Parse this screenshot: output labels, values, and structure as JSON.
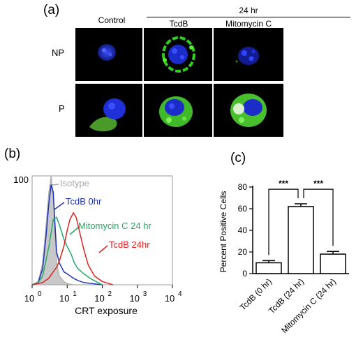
{
  "panel_a": {
    "label": "(a)",
    "time_header": "24 hr",
    "columns": [
      "Control",
      "TcdB",
      "Mitomycin C"
    ],
    "rows": [
      "NP",
      "P"
    ]
  },
  "panel_b": {
    "label": "(b)",
    "ytick": "100",
    "xlabel": "CRT exposure",
    "xticks": [
      "10",
      "10",
      "10",
      "10",
      "10"
    ],
    "xtick_exponents": [
      "0",
      "1",
      "2",
      "3",
      "4"
    ],
    "legend": [
      {
        "name": "Isotype",
        "color": "#aaaaaa"
      },
      {
        "name": "TcdB 0hr",
        "color": "#2233bb"
      },
      {
        "name": "Mitomycin C 24 hr",
        "color": "#22aa66"
      },
      {
        "name": "TcdB 24hr",
        "color": "#dd2222"
      }
    ]
  },
  "panel_c": {
    "label": "(c)",
    "significance": [
      "***",
      "***"
    ]
  },
  "chart_data": [
    {
      "type": "line",
      "title": "",
      "xlabel": "CRT exposure",
      "ylabel": "",
      "xscale": "log",
      "xlim": [
        1,
        10000
      ],
      "ylim": [
        0,
        100
      ],
      "series": [
        {
          "name": "Isotype",
          "color": "#aaaaaa",
          "filled": true,
          "x": [
            1,
            1.5,
            2,
            2.5,
            3,
            3.5,
            4,
            4.5,
            5,
            6,
            8,
            10,
            15,
            100
          ],
          "y": [
            0,
            3,
            20,
            55,
            85,
            100,
            80,
            45,
            20,
            8,
            3,
            1,
            0,
            0
          ]
        },
        {
          "name": "TcdB 0hr",
          "color": "#2233bb",
          "x": [
            1,
            1.5,
            2,
            2.5,
            3,
            3.5,
            4,
            4.5,
            5,
            6,
            8,
            10,
            15,
            20,
            30,
            100
          ],
          "y": [
            0,
            2,
            15,
            45,
            75,
            92,
            85,
            55,
            30,
            20,
            12,
            10,
            6,
            4,
            2,
            0
          ]
        },
        {
          "name": "Mitomycin C 24 hr",
          "color": "#22aa66",
          "x": [
            1,
            1.5,
            2,
            3,
            4,
            5,
            6,
            7,
            8,
            10,
            13,
            16,
            20,
            30,
            50,
            100
          ],
          "y": [
            0,
            2,
            8,
            35,
            60,
            62,
            55,
            48,
            42,
            35,
            28,
            20,
            15,
            10,
            5,
            0
          ]
        },
        {
          "name": "TcdB 24hr",
          "color": "#dd2222",
          "x": [
            1,
            2,
            3,
            4,
            5,
            6,
            8,
            10,
            12,
            15,
            18,
            22,
            30,
            40,
            60,
            100,
            200
          ],
          "y": [
            0,
            2,
            6,
            12,
            16,
            22,
            35,
            50,
            60,
            66,
            62,
            50,
            32,
            18,
            8,
            3,
            0
          ]
        }
      ]
    },
    {
      "type": "bar",
      "title": "",
      "xlabel": "",
      "ylabel": "Percent Positive Cells",
      "categories": [
        "TcdB (0 hr)",
        "TcdB (24 hr)",
        "Mitomycin C (24 hr)"
      ],
      "values": [
        10,
        62,
        18
      ],
      "errors": [
        2,
        2.5,
        2.5
      ],
      "ylim": [
        0,
        80
      ],
      "yticks": [
        0,
        20,
        40,
        60,
        80
      ]
    }
  ]
}
